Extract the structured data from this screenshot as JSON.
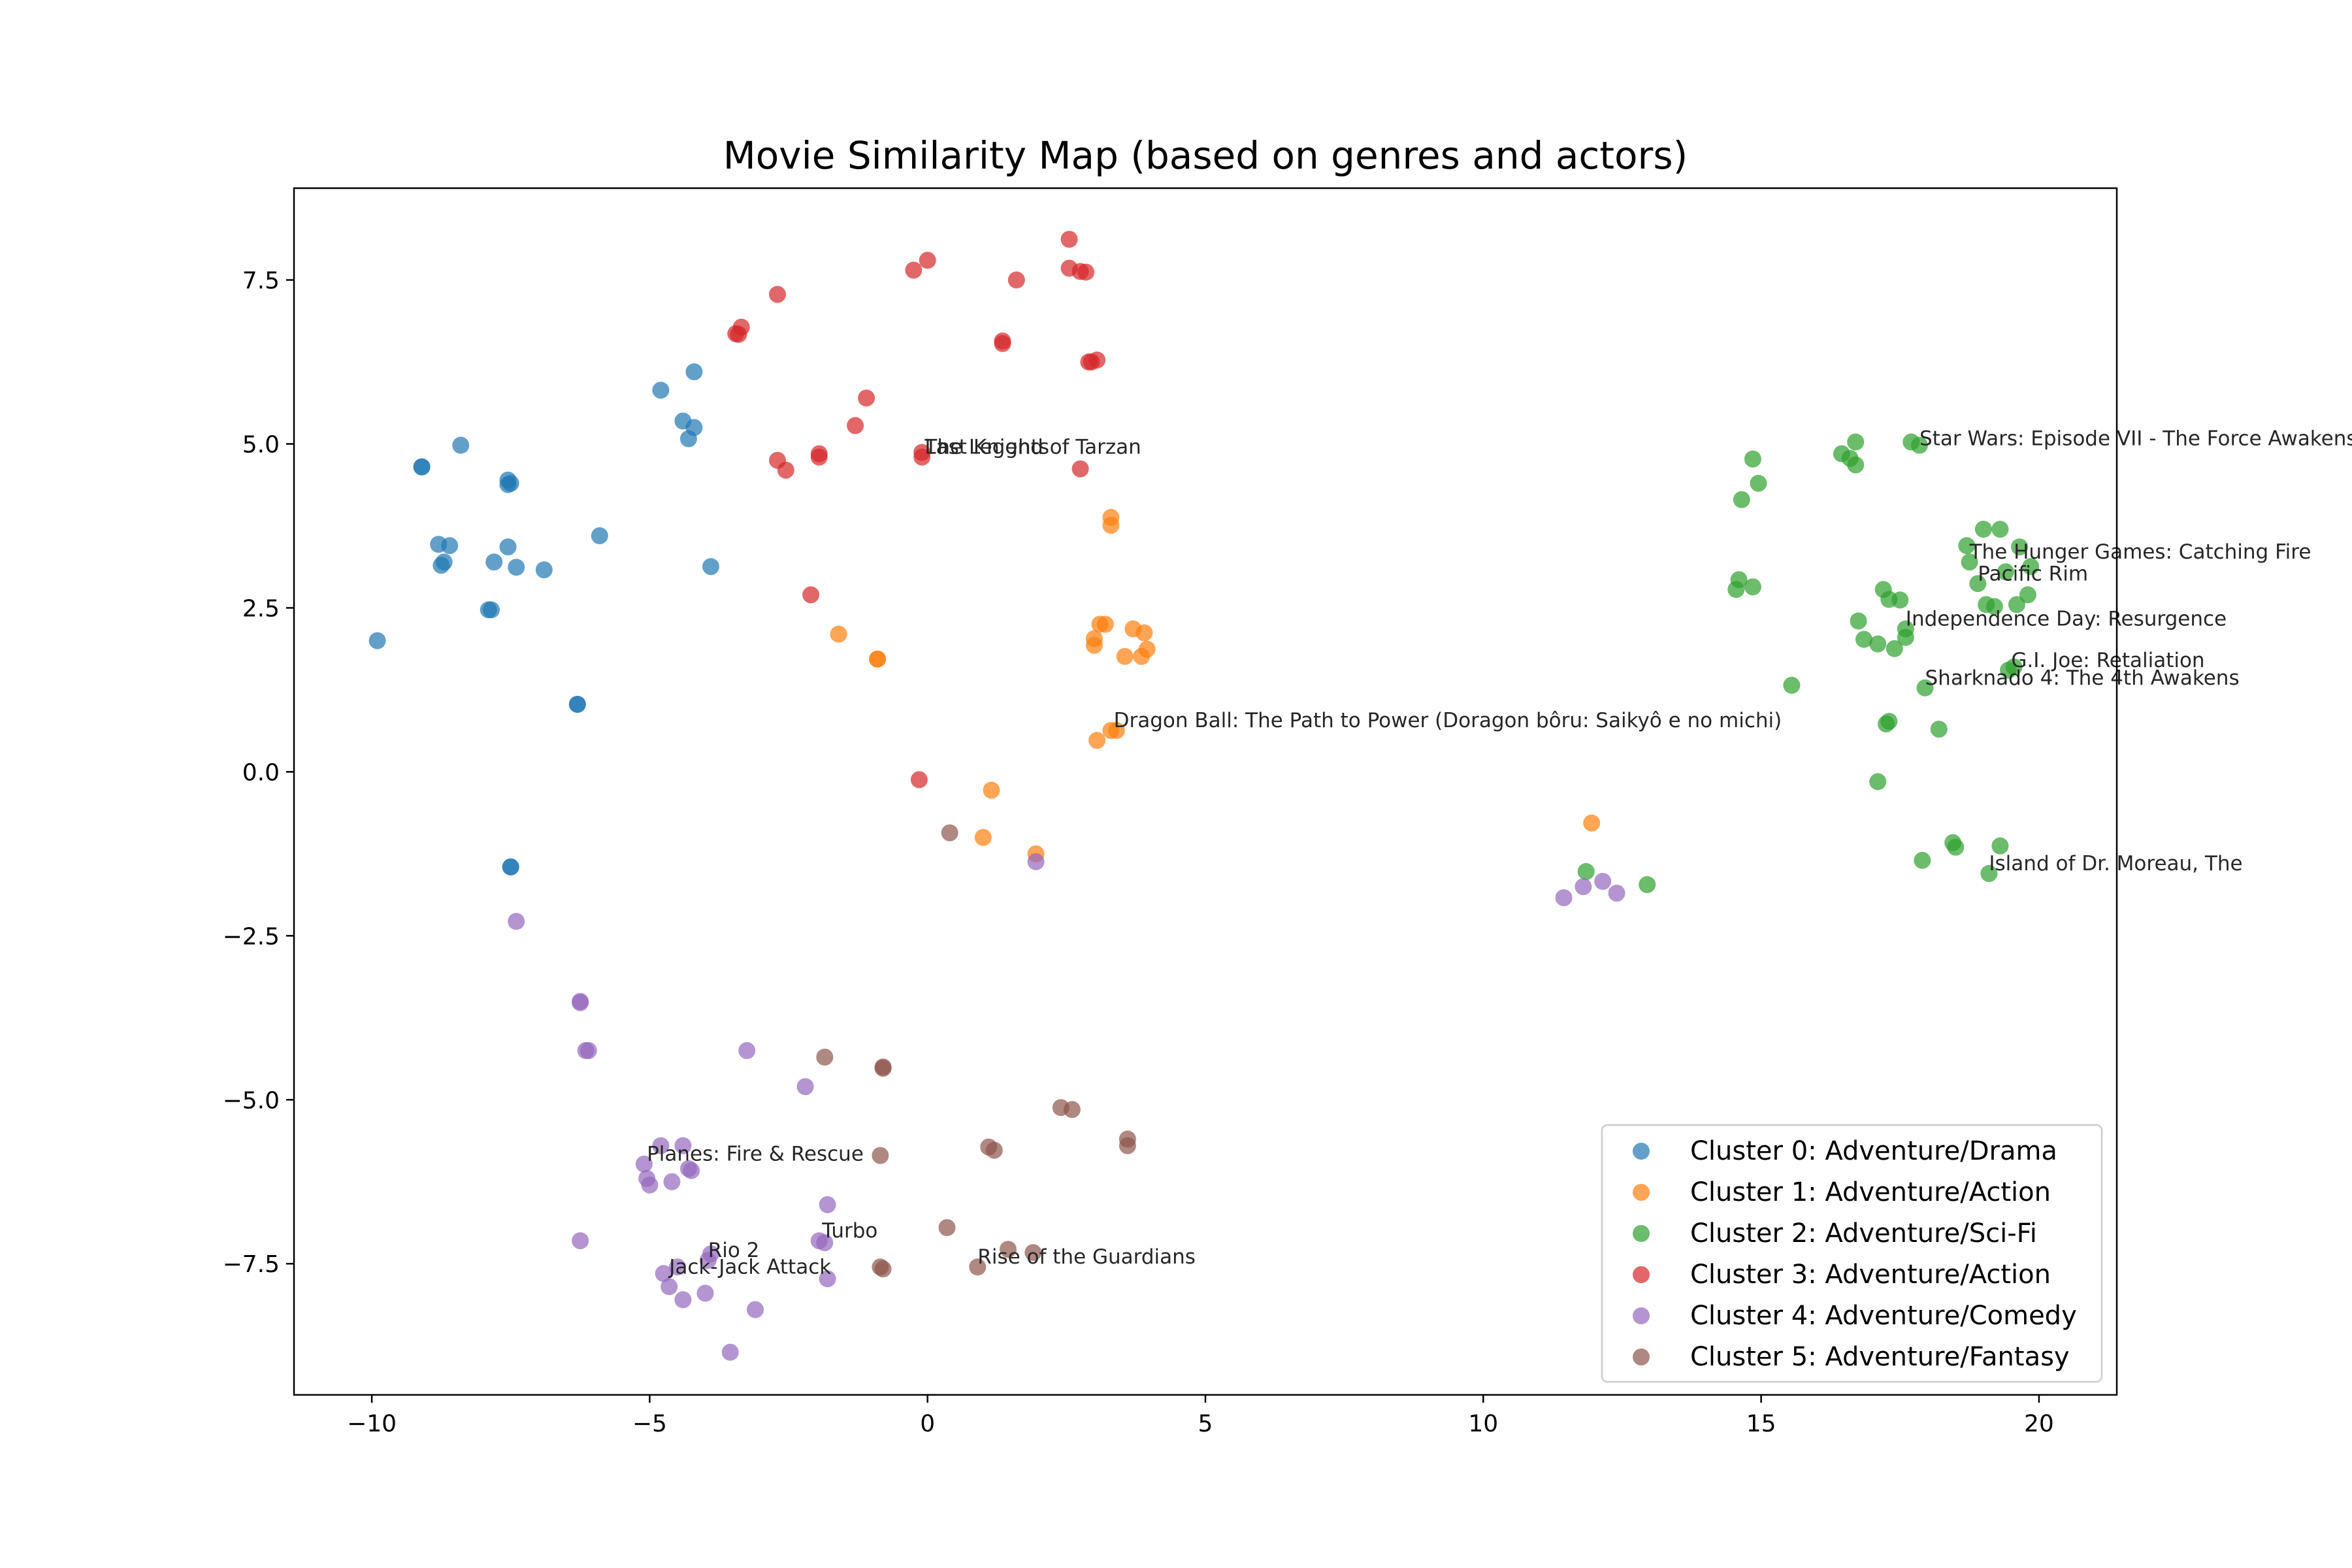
{
  "chart_data": {
    "type": "scatter",
    "title": "Movie Similarity Map (based on genres and actors)",
    "xlabel": "",
    "ylabel": "",
    "xlim": [
      -11.4,
      21.4
    ],
    "ylim": [
      -9.5,
      8.9
    ],
    "xticks": [
      -10,
      -5,
      0,
      5,
      10,
      15,
      20
    ],
    "xtick_labels": [
      "−10",
      "−5",
      "0",
      "5",
      "10",
      "15",
      "20"
    ],
    "yticks": [
      -7.5,
      -5.0,
      -2.5,
      0.0,
      2.5,
      5.0,
      7.5
    ],
    "ytick_labels": [
      "−7.5",
      "−5.0",
      "−2.5",
      "0.0",
      "2.5",
      "5.0",
      "7.5"
    ],
    "grid": false,
    "legend_position": "lower-right",
    "series": [
      {
        "name": "Cluster 0: Adventure/Drama",
        "color": "#1f77b4",
        "points": [
          [
            -9.9,
            2.0
          ],
          [
            -9.1,
            4.65
          ],
          [
            -9.1,
            4.65
          ],
          [
            -8.4,
            4.98
          ],
          [
            -8.8,
            3.47
          ],
          [
            -8.6,
            3.45
          ],
          [
            -8.7,
            3.2
          ],
          [
            -8.75,
            3.15
          ],
          [
            -7.8,
            3.2
          ],
          [
            -7.9,
            2.47
          ],
          [
            -7.85,
            2.47
          ],
          [
            -7.55,
            3.43
          ],
          [
            -7.55,
            4.45
          ],
          [
            -7.5,
            4.4
          ],
          [
            -7.55,
            4.38
          ],
          [
            -7.4,
            3.12
          ],
          [
            -6.9,
            3.08
          ],
          [
            -5.9,
            3.6
          ],
          [
            -6.3,
            1.03
          ],
          [
            -6.3,
            1.03
          ],
          [
            -7.5,
            -1.45
          ],
          [
            -7.5,
            -1.45
          ],
          [
            -4.8,
            5.82
          ],
          [
            -4.2,
            6.1
          ],
          [
            -4.4,
            5.35
          ],
          [
            -4.2,
            5.25
          ],
          [
            -4.3,
            5.08
          ],
          [
            -3.9,
            3.13
          ]
        ]
      },
      {
        "name": "Cluster 1: Adventure/Action",
        "color": "#ff7f0e",
        "points": [
          [
            3.3,
            3.88
          ],
          [
            3.3,
            3.76
          ],
          [
            3.2,
            2.25
          ],
          [
            3.1,
            2.25
          ],
          [
            3.0,
            2.03
          ],
          [
            3.0,
            1.93
          ],
          [
            3.7,
            2.18
          ],
          [
            3.9,
            2.12
          ],
          [
            3.95,
            1.87
          ],
          [
            3.85,
            1.76
          ],
          [
            3.55,
            1.76
          ],
          [
            -1.6,
            2.1
          ],
          [
            -0.9,
            1.72
          ],
          [
            -0.9,
            1.72
          ],
          [
            3.3,
            0.63
          ],
          [
            3.4,
            0.63
          ],
          [
            3.05,
            0.48
          ],
          [
            1.15,
            -0.28
          ],
          [
            1.0,
            -1.0
          ],
          [
            1.95,
            -1.25
          ],
          [
            11.95,
            -0.78
          ]
        ]
      },
      {
        "name": "Cluster 2: Adventure/Sci-Fi",
        "color": "#2ca02c",
        "points": [
          [
            14.85,
            4.77
          ],
          [
            14.95,
            4.4
          ],
          [
            14.65,
            4.15
          ],
          [
            16.45,
            4.85
          ],
          [
            16.6,
            4.78
          ],
          [
            16.7,
            4.68
          ],
          [
            16.7,
            5.03
          ],
          [
            17.7,
            5.03
          ],
          [
            17.85,
            4.98
          ],
          [
            18.7,
            3.45
          ],
          [
            18.75,
            3.2
          ],
          [
            19.0,
            3.7
          ],
          [
            19.3,
            3.7
          ],
          [
            19.65,
            3.43
          ],
          [
            19.4,
            3.05
          ],
          [
            19.85,
            3.13
          ],
          [
            18.9,
            2.87
          ],
          [
            19.05,
            2.55
          ],
          [
            19.2,
            2.52
          ],
          [
            19.6,
            2.55
          ],
          [
            19.8,
            2.7
          ],
          [
            14.55,
            2.78
          ],
          [
            14.6,
            2.93
          ],
          [
            14.85,
            2.82
          ],
          [
            17.2,
            2.78
          ],
          [
            17.3,
            2.63
          ],
          [
            17.5,
            2.62
          ],
          [
            16.75,
            2.3
          ],
          [
            16.85,
            2.02
          ],
          [
            17.1,
            1.95
          ],
          [
            17.4,
            1.88
          ],
          [
            17.6,
            2.05
          ],
          [
            17.6,
            2.18
          ],
          [
            19.45,
            1.55
          ],
          [
            19.55,
            1.6
          ],
          [
            17.95,
            1.28
          ],
          [
            15.55,
            1.32
          ],
          [
            17.25,
            0.73
          ],
          [
            17.3,
            0.77
          ],
          [
            18.2,
            0.65
          ],
          [
            17.1,
            -0.15
          ],
          [
            18.45,
            -1.08
          ],
          [
            18.5,
            -1.15
          ],
          [
            19.3,
            -1.13
          ],
          [
            17.9,
            -1.35
          ],
          [
            19.1,
            -1.55
          ],
          [
            11.85,
            -1.52
          ],
          [
            12.95,
            -1.72
          ]
        ]
      },
      {
        "name": "Cluster 3: Adventure/Action",
        "color": "#d62728",
        "points": [
          [
            2.55,
            8.12
          ],
          [
            2.55,
            7.68
          ],
          [
            2.75,
            7.63
          ],
          [
            2.85,
            7.62
          ],
          [
            1.6,
            7.5
          ],
          [
            0.0,
            7.8
          ],
          [
            -0.25,
            7.65
          ],
          [
            -2.7,
            7.28
          ],
          [
            -3.35,
            6.78
          ],
          [
            -3.45,
            6.68
          ],
          [
            -3.4,
            6.67
          ],
          [
            1.35,
            6.57
          ],
          [
            1.35,
            6.53
          ],
          [
            2.9,
            6.25
          ],
          [
            3.05,
            6.28
          ],
          [
            2.95,
            6.25
          ],
          [
            -1.1,
            5.7
          ],
          [
            -1.3,
            5.28
          ],
          [
            -0.1,
            4.87
          ],
          [
            -0.1,
            4.8
          ],
          [
            -1.95,
            4.85
          ],
          [
            -1.95,
            4.8
          ],
          [
            -2.7,
            4.75
          ],
          [
            -2.55,
            4.6
          ],
          [
            2.75,
            4.62
          ],
          [
            -2.1,
            2.7
          ],
          [
            -0.15,
            -0.12
          ]
        ]
      },
      {
        "name": "Cluster 4: Adventure/Comedy",
        "color": "#9467bd",
        "points": [
          [
            1.95,
            -1.37
          ],
          [
            -7.4,
            -2.28
          ],
          [
            -6.25,
            -3.5
          ],
          [
            -6.25,
            -3.52
          ],
          [
            -6.15,
            -4.25
          ],
          [
            -6.1,
            -4.25
          ],
          [
            -3.25,
            -4.25
          ],
          [
            -2.2,
            -4.8
          ],
          [
            -4.8,
            -5.7
          ],
          [
            -4.4,
            -5.7
          ],
          [
            -5.1,
            -5.98
          ],
          [
            -5.05,
            -6.2
          ],
          [
            -5.0,
            -6.3
          ],
          [
            -4.6,
            -6.25
          ],
          [
            -4.3,
            -6.05
          ],
          [
            -4.25,
            -6.08
          ],
          [
            -1.8,
            -6.6
          ],
          [
            -6.25,
            -7.15
          ],
          [
            -1.95,
            -7.15
          ],
          [
            -1.85,
            -7.18
          ],
          [
            -3.9,
            -7.35
          ],
          [
            -3.95,
            -7.45
          ],
          [
            -4.5,
            -7.55
          ],
          [
            -4.75,
            -7.65
          ],
          [
            -4.65,
            -7.85
          ],
          [
            -4.4,
            -8.05
          ],
          [
            -4.0,
            -7.95
          ],
          [
            -3.1,
            -8.2
          ],
          [
            -1.8,
            -7.73
          ],
          [
            -3.55,
            -8.85
          ],
          [
            11.45,
            -1.92
          ],
          [
            11.8,
            -1.75
          ],
          [
            12.15,
            -1.67
          ],
          [
            12.4,
            -1.85
          ]
        ]
      },
      {
        "name": "Cluster 5: Adventure/Fantasy",
        "color": "#8c564b",
        "points": [
          [
            0.4,
            -0.93
          ],
          [
            -1.85,
            -4.35
          ],
          [
            -0.8,
            -4.5
          ],
          [
            -0.8,
            -4.52
          ],
          [
            2.4,
            -5.12
          ],
          [
            2.6,
            -5.15
          ],
          [
            3.6,
            -5.6
          ],
          [
            3.6,
            -5.7
          ],
          [
            1.1,
            -5.72
          ],
          [
            1.2,
            -5.77
          ],
          [
            -0.85,
            -5.85
          ],
          [
            0.35,
            -6.95
          ],
          [
            1.45,
            -7.28
          ],
          [
            1.9,
            -7.33
          ],
          [
            -0.85,
            -7.55
          ],
          [
            -0.8,
            -7.58
          ],
          [
            0.9,
            -7.55
          ]
        ]
      }
    ],
    "annotations": [
      {
        "text": "The Legend of Tarzan",
        "x": -0.05,
        "y": 4.85
      },
      {
        "text": "Last Knights",
        "x": -0.05,
        "y": 4.85
      },
      {
        "text": "Star Wars: Episode VII - The Force Awakens",
        "x": 17.85,
        "y": 4.98
      },
      {
        "text": "The Hunger Games: Catching Fire",
        "x": 18.75,
        "y": 3.25
      },
      {
        "text": "Pacific Rim",
        "x": 18.9,
        "y": 2.92
      },
      {
        "text": "Independence Day: Resurgence",
        "x": 17.6,
        "y": 2.23
      },
      {
        "text": "G.I. Joe: Retaliation",
        "x": 19.5,
        "y": 1.6
      },
      {
        "text": "Sharknado 4: The 4th Awakens",
        "x": 17.95,
        "y": 1.33
      },
      {
        "text": "Dragon Ball: The Path to Power (Doragon bôru: Saikyô e no michi)",
        "x": 3.35,
        "y": 0.68
      },
      {
        "text": "Island of Dr. Moreau, The",
        "x": 19.1,
        "y": -1.5
      },
      {
        "text": "Planes: Fire & Rescue",
        "x": -5.05,
        "y": -5.93
      },
      {
        "text": "Turbo",
        "x": -1.9,
        "y": -7.1
      },
      {
        "text": "Rio 2",
        "x": -3.95,
        "y": -7.4
      },
      {
        "text": "Jack-Jack Attack",
        "x": -4.65,
        "y": -7.65
      },
      {
        "text": "Rise of the Guardians",
        "x": 0.9,
        "y": -7.5
      }
    ]
  }
}
